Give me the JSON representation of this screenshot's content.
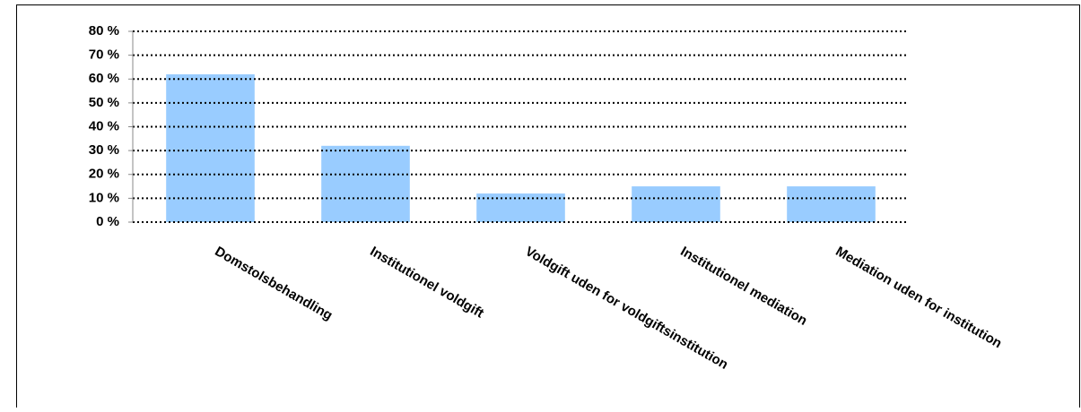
{
  "chart_data": {
    "type": "bar",
    "categories": [
      "Domstolsbehandling",
      "Institutionel voldgift",
      "Voldgift uden for voldgiftsinstitution",
      "Institutionel mediation",
      "Mediation uden for institution"
    ],
    "values": [
      62,
      32,
      12,
      15,
      15
    ],
    "color": "#99ccff",
    "ylim": [
      0,
      80
    ],
    "yticks": [
      {
        "value": 0,
        "label": "0 %"
      },
      {
        "value": 10,
        "label": "10 %"
      },
      {
        "value": 20,
        "label": "20 %"
      },
      {
        "value": 30,
        "label": "30 %"
      },
      {
        "value": 40,
        "label": "40 %"
      },
      {
        "value": 50,
        "label": "50 %"
      },
      {
        "value": 60,
        "label": "60 %"
      },
      {
        "value": 70,
        "label": "70 %"
      },
      {
        "value": 80,
        "label": "80 %"
      }
    ],
    "grid": true
  }
}
